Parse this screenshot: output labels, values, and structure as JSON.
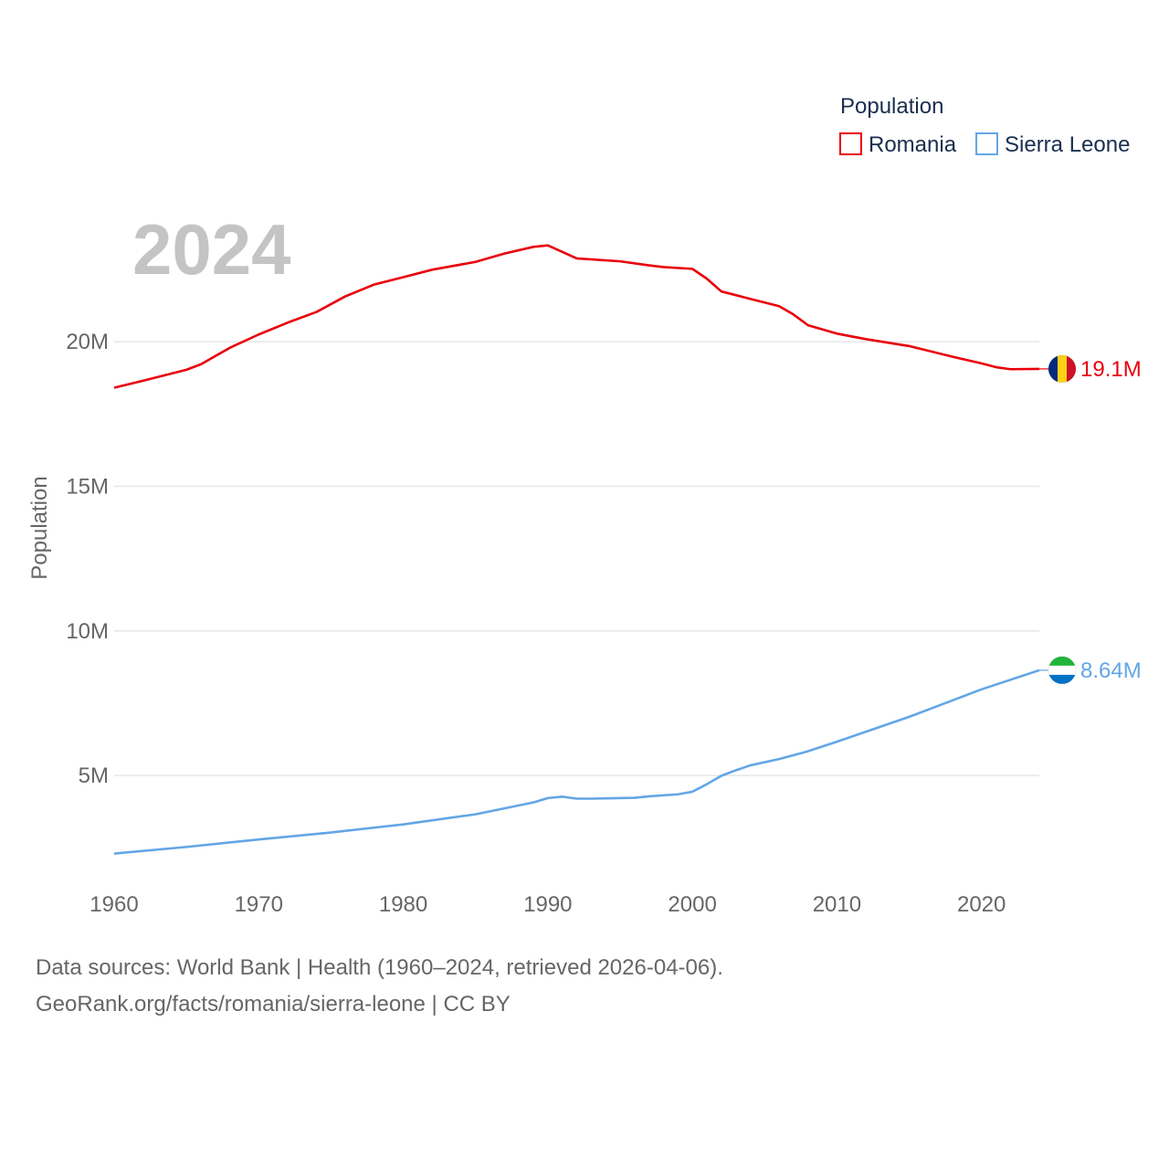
{
  "chart_data": {
    "type": "line",
    "legend": {
      "title": "Population",
      "position": "top-right"
    },
    "ylabel": "Population",
    "xlabel": "",
    "current_year": "2024",
    "xlim": [
      1960,
      2024
    ],
    "ylim": [
      1500000,
      25500000
    ],
    "x_ticks": [
      {
        "value": 1960,
        "label": "1960"
      },
      {
        "value": 1970,
        "label": "1970"
      },
      {
        "value": 1980,
        "label": "1980"
      },
      {
        "value": 1990,
        "label": "1990"
      },
      {
        "value": 2000,
        "label": "2000"
      },
      {
        "value": 2010,
        "label": "2010"
      },
      {
        "value": 2020,
        "label": "2020"
      }
    ],
    "y_ticks": [
      {
        "value": 5000000,
        "label": "5M"
      },
      {
        "value": 10000000,
        "label": "10M"
      },
      {
        "value": 15000000,
        "label": "15M"
      },
      {
        "value": 20000000,
        "label": "20M"
      }
    ],
    "grid": true,
    "series": [
      {
        "name": "Romania",
        "color": "#e8000b",
        "end_label": "19.1M",
        "flag_icon": "romania-flag-icon",
        "flag_colors": [
          "#002b7f",
          "#fcd116",
          "#ce1126"
        ],
        "points": [
          [
            1960,
            18410000
          ],
          [
            1962,
            18650000
          ],
          [
            1965,
            19030000
          ],
          [
            1966,
            19220000
          ],
          [
            1968,
            19790000
          ],
          [
            1970,
            20250000
          ],
          [
            1972,
            20660000
          ],
          [
            1974,
            21030000
          ],
          [
            1976,
            21570000
          ],
          [
            1978,
            21980000
          ],
          [
            1980,
            22230000
          ],
          [
            1982,
            22490000
          ],
          [
            1985,
            22760000
          ],
          [
            1987,
            23050000
          ],
          [
            1989,
            23280000
          ],
          [
            1990,
            23330000
          ],
          [
            1992,
            22880000
          ],
          [
            1995,
            22780000
          ],
          [
            1997,
            22640000
          ],
          [
            1998,
            22580000
          ],
          [
            2000,
            22520000
          ],
          [
            2001,
            22180000
          ],
          [
            2002,
            21740000
          ],
          [
            2004,
            21480000
          ],
          [
            2006,
            21230000
          ],
          [
            2007,
            20940000
          ],
          [
            2008,
            20570000
          ],
          [
            2010,
            20280000
          ],
          [
            2012,
            20090000
          ],
          [
            2015,
            19850000
          ],
          [
            2018,
            19480000
          ],
          [
            2020,
            19250000
          ],
          [
            2021,
            19120000
          ],
          [
            2022,
            19050000
          ],
          [
            2024,
            19060000
          ]
        ]
      },
      {
        "name": "Sierra Leone",
        "color": "#63a6e6",
        "end_label": "8.64M",
        "flag_icon": "sierra-leone-flag-icon",
        "flag_colors": [
          "#1eb53a",
          "#ffffff",
          "#0072c6"
        ],
        "points": [
          [
            1960,
            2300000
          ],
          [
            1965,
            2530000
          ],
          [
            1970,
            2790000
          ],
          [
            1975,
            3030000
          ],
          [
            1980,
            3310000
          ],
          [
            1985,
            3660000
          ],
          [
            1989,
            4070000
          ],
          [
            1990,
            4220000
          ],
          [
            1991,
            4270000
          ],
          [
            1992,
            4200000
          ],
          [
            1993,
            4200000
          ],
          [
            1994,
            4210000
          ],
          [
            1996,
            4230000
          ],
          [
            1997,
            4280000
          ],
          [
            1999,
            4350000
          ],
          [
            2000,
            4440000
          ],
          [
            2001,
            4700000
          ],
          [
            2002,
            4990000
          ],
          [
            2003,
            5180000
          ],
          [
            2004,
            5350000
          ],
          [
            2006,
            5570000
          ],
          [
            2008,
            5840000
          ],
          [
            2010,
            6170000
          ],
          [
            2015,
            7030000
          ],
          [
            2020,
            7980000
          ],
          [
            2024,
            8640000
          ]
        ]
      }
    ]
  },
  "footer": {
    "line1": "Data sources: World Bank | Health (1960–2024, retrieved 2026-04-06).",
    "line2": "GeoRank.org/facts/romania/sierra-leone | CC BY"
  }
}
